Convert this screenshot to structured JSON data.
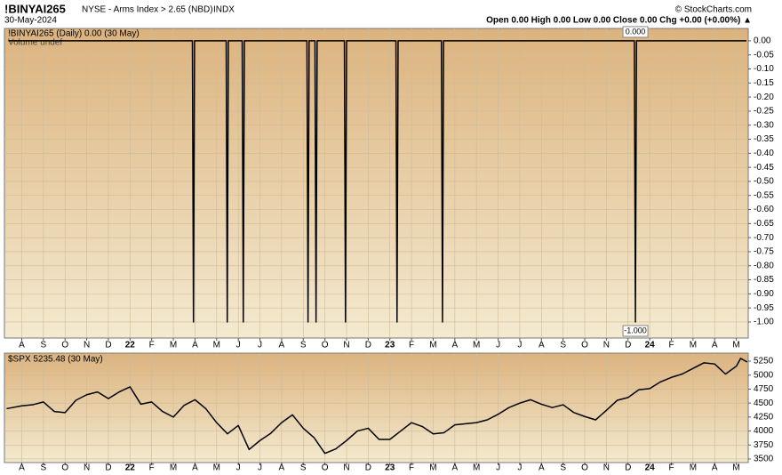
{
  "chart_data": [
    {
      "type": "line",
      "title": "!BINYAI265",
      "subtitle": "NYSE - Arms Index > 2.65 (NBD)",
      "exchange": "INDX",
      "date": "30-May-2024",
      "source": "© StockCharts.com",
      "quote": "Open 0.00  High 0.00  Low 0.00  Close 0.00  Chg +0.00 (+0.00%) ▲",
      "volume_note": "Volume undef",
      "series": [
        {
          "name": "!BINYAI265 (Daily) 0.00 (30 May)",
          "color": "#000000",
          "x": [
            -0.62,
            7.88,
            7.93,
            7.98,
            9.44,
            9.49,
            9.54,
            10.18,
            10.23,
            10.28,
            13.17,
            13.22,
            13.27,
            13.54,
            13.59,
            13.64,
            14.9,
            14.95,
            15.0,
            17.28,
            17.33,
            17.38,
            19.38,
            19.43,
            19.48,
            28.29,
            28.34,
            28.39,
            33.47
          ],
          "values": [
            0,
            0,
            -1,
            0,
            0,
            -1,
            0,
            0,
            -1,
            0,
            0,
            -1,
            0,
            0,
            -1,
            0,
            0,
            -1,
            0,
            0,
            -1,
            0,
            0,
            -1,
            0,
            0,
            -1,
            0,
            0
          ]
        }
      ],
      "annotations": [
        {
          "text": "0.000",
          "x": 28.34,
          "y": 0
        },
        {
          "text": "-1.000",
          "x": 28.34,
          "y": -1
        }
      ],
      "xlim": [
        -0.8,
        33.55
      ],
      "ylim": [
        -1.057,
        0.044
      ],
      "xticks": [
        {
          "value": 0,
          "label": "A"
        },
        {
          "value": 1,
          "label": "S"
        },
        {
          "value": 2,
          "label": "O"
        },
        {
          "value": 3,
          "label": "N"
        },
        {
          "value": 4,
          "label": "D"
        },
        {
          "value": 5,
          "label": "22"
        },
        {
          "value": 6,
          "label": "F"
        },
        {
          "value": 7,
          "label": "M"
        },
        {
          "value": 8,
          "label": "A"
        },
        {
          "value": 9,
          "label": "M"
        },
        {
          "value": 10,
          "label": "J"
        },
        {
          "value": 11,
          "label": "J"
        },
        {
          "value": 12,
          "label": "A"
        },
        {
          "value": 13,
          "label": "S"
        },
        {
          "value": 14,
          "label": "O"
        },
        {
          "value": 15,
          "label": "N"
        },
        {
          "value": 16,
          "label": "D"
        },
        {
          "value": 17,
          "label": "23"
        },
        {
          "value": 18,
          "label": "F"
        },
        {
          "value": 19,
          "label": "M"
        },
        {
          "value": 20,
          "label": "A"
        },
        {
          "value": 21,
          "label": "M"
        },
        {
          "value": 22,
          "label": "J"
        },
        {
          "value": 23,
          "label": "J"
        },
        {
          "value": 24,
          "label": "A"
        },
        {
          "value": 25,
          "label": "S"
        },
        {
          "value": 26,
          "label": "O"
        },
        {
          "value": 27,
          "label": "N"
        },
        {
          "value": 28,
          "label": "D"
        },
        {
          "value": 29,
          "label": "24"
        },
        {
          "value": 30,
          "label": "F"
        },
        {
          "value": 31,
          "label": "M"
        },
        {
          "value": 32,
          "label": "A"
        },
        {
          "value": 33,
          "label": "M"
        }
      ],
      "yticks": [
        {
          "value": 0,
          "label": "0.00"
        },
        {
          "value": -0.05,
          "label": "-0.05"
        },
        {
          "value": -0.1,
          "label": "-0.10"
        },
        {
          "value": -0.15,
          "label": "-0.15"
        },
        {
          "value": -0.2,
          "label": "-0.20"
        },
        {
          "value": -0.25,
          "label": "-0.25"
        },
        {
          "value": -0.3,
          "label": "-0.30"
        },
        {
          "value": -0.35,
          "label": "-0.35"
        },
        {
          "value": -0.4,
          "label": "-0.40"
        },
        {
          "value": -0.45,
          "label": "-0.45"
        },
        {
          "value": -0.5,
          "label": "-0.50"
        },
        {
          "value": -0.55,
          "label": "-0.55"
        },
        {
          "value": -0.6,
          "label": "-0.60"
        },
        {
          "value": -0.65,
          "label": "-0.65"
        },
        {
          "value": -0.7,
          "label": "-0.70"
        },
        {
          "value": -0.75,
          "label": "-0.75"
        },
        {
          "value": -0.8,
          "label": "-0.80"
        },
        {
          "value": -0.85,
          "label": "-0.85"
        },
        {
          "value": -0.9,
          "label": "-0.90"
        },
        {
          "value": -0.95,
          "label": "-0.95"
        },
        {
          "value": -1,
          "label": "-1.00"
        }
      ],
      "grid": true
    },
    {
      "type": "line",
      "series": [
        {
          "name": "$SPX 5235.48 (30 May)",
          "color": "#000000",
          "x": [
            -0.7,
            0,
            0.5,
            1,
            1.5,
            2,
            2.5,
            3,
            3.5,
            4,
            4.5,
            5,
            5.5,
            6,
            6.5,
            7,
            7.5,
            8,
            8.5,
            9,
            9.5,
            10,
            10.5,
            11,
            11.5,
            12,
            12.5,
            13,
            13.5,
            14,
            14.5,
            15,
            15.5,
            16,
            16.5,
            17,
            17.5,
            18,
            18.5,
            19,
            19.5,
            20,
            20.5,
            21,
            21.5,
            22,
            22.5,
            23,
            23.5,
            24,
            24.5,
            25,
            25.5,
            26,
            26.5,
            27,
            27.5,
            28,
            28.5,
            29,
            29.5,
            30,
            30.5,
            31,
            31.5,
            32,
            32.5,
            33,
            33.2,
            33.5
          ],
          "values": [
            4400,
            4450,
            4470,
            4520,
            4350,
            4330,
            4550,
            4650,
            4700,
            4580,
            4700,
            4790,
            4480,
            4520,
            4350,
            4250,
            4460,
            4560,
            4400,
            4150,
            3950,
            4100,
            3670,
            3830,
            3960,
            4150,
            4290,
            4050,
            3880,
            3600,
            3680,
            3830,
            4000,
            4050,
            3850,
            3850,
            4000,
            4150,
            4080,
            3950,
            3970,
            4110,
            4130,
            4150,
            4200,
            4300,
            4420,
            4500,
            4560,
            4480,
            4420,
            4470,
            4330,
            4260,
            4200,
            4370,
            4550,
            4600,
            4740,
            4760,
            4880,
            4960,
            5020,
            5120,
            5220,
            5200,
            5020,
            5160,
            5300,
            5235.48
          ]
        }
      ],
      "xlim": [
        -0.8,
        33.55
      ],
      "ylim": [
        3436,
        5394
      ],
      "xticks": [
        {
          "value": 0,
          "label": "A"
        },
        {
          "value": 1,
          "label": "S"
        },
        {
          "value": 2,
          "label": "O"
        },
        {
          "value": 3,
          "label": "N"
        },
        {
          "value": 4,
          "label": "D"
        },
        {
          "value": 5,
          "label": "22"
        },
        {
          "value": 6,
          "label": "F"
        },
        {
          "value": 7,
          "label": "M"
        },
        {
          "value": 8,
          "label": "A"
        },
        {
          "value": 9,
          "label": "M"
        },
        {
          "value": 10,
          "label": "J"
        },
        {
          "value": 11,
          "label": "J"
        },
        {
          "value": 12,
          "label": "A"
        },
        {
          "value": 13,
          "label": "S"
        },
        {
          "value": 14,
          "label": "O"
        },
        {
          "value": 15,
          "label": "N"
        },
        {
          "value": 16,
          "label": "D"
        },
        {
          "value": 17,
          "label": "23"
        },
        {
          "value": 18,
          "label": "F"
        },
        {
          "value": 19,
          "label": "M"
        },
        {
          "value": 20,
          "label": "A"
        },
        {
          "value": 21,
          "label": "M"
        },
        {
          "value": 22,
          "label": "J"
        },
        {
          "value": 23,
          "label": "J"
        },
        {
          "value": 24,
          "label": "A"
        },
        {
          "value": 25,
          "label": "S"
        },
        {
          "value": 26,
          "label": "O"
        },
        {
          "value": 27,
          "label": "N"
        },
        {
          "value": 28,
          "label": "D"
        },
        {
          "value": 29,
          "label": "24"
        },
        {
          "value": 30,
          "label": "F"
        },
        {
          "value": 31,
          "label": "M"
        },
        {
          "value": 32,
          "label": "A"
        },
        {
          "value": 33,
          "label": "M"
        }
      ],
      "yticks": [
        5250,
        5000,
        4750,
        4500,
        4250,
        4000,
        3750,
        3500
      ],
      "grid": true
    }
  ]
}
